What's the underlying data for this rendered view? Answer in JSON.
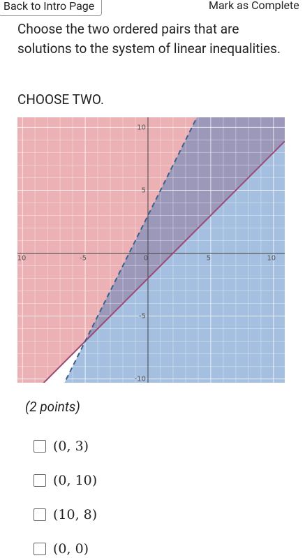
{
  "header": {
    "back": "Back to Intro Page",
    "complete": "Mark as Complete"
  },
  "question": "Choose the two ordered pairs that are solutions to the system of linear inequalities.",
  "instruction": "CHOOSE TWO.",
  "chart_data": {
    "type": "inequality-regions",
    "xlim": [
      -10.4,
      10.9
    ],
    "ylim": [
      -10.3,
      10.8
    ],
    "xticks": [
      -10,
      -5,
      0,
      5,
      10
    ],
    "yticks": [
      -10,
      -5,
      5,
      10
    ],
    "grid": true,
    "lines": [
      {
        "slope": 1,
        "intercept": -2,
        "style": "solid",
        "shade": "above",
        "color": "#d9646c"
      },
      {
        "slope": 2,
        "intercept": 3,
        "style": "dashed",
        "shade": "below",
        "color": "#4a7fbf"
      }
    ]
  },
  "points": "(2 points)",
  "options": [
    "(0, 3)",
    "(0, 10)",
    "(10, 8)",
    "(0, 0)"
  ]
}
